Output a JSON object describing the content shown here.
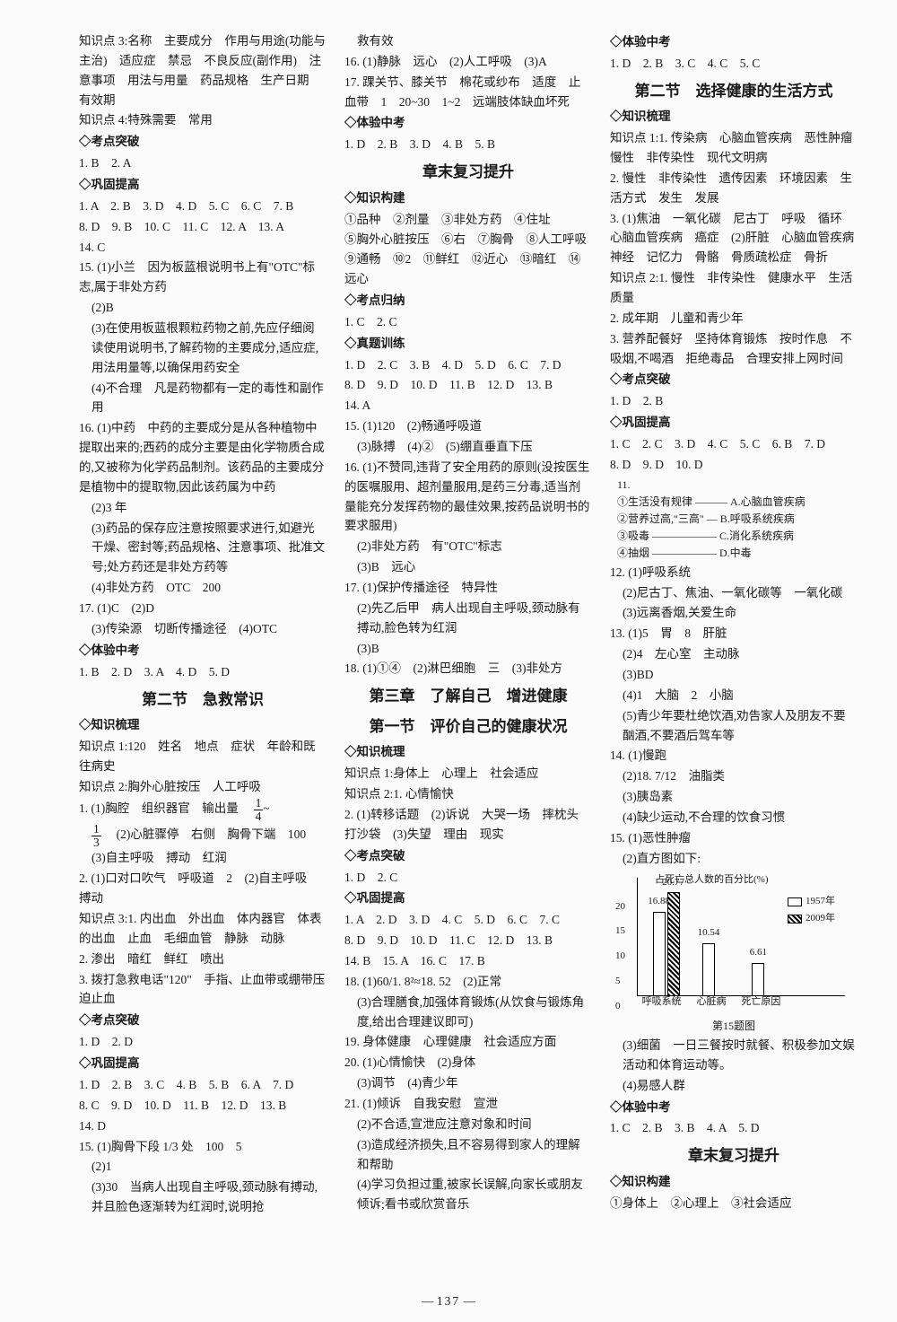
{
  "page_number": "137",
  "col1": {
    "zsd3": "知识点 3:名称　主要成分　作用与用途(功能与主治)　适应症　禁忌　不良反应(副作用)　注意事项　用法与用量　药品规格　生产日期　有效期",
    "zsd4": "知识点 4:特殊需要　常用",
    "kdtp_hd": "◇考点突破",
    "kdtp": "1. B　2. A",
    "gg_hd": "◇巩固提高",
    "gg1": "1. A　2. B　3. D　4. D　5. C　6. C　7. B",
    "gg2": "8. D　9. B　10. C　11. C　12. A　13. A",
    "gg3": "14. C",
    "a15_1": "15. (1)小兰　因为板蓝根说明书上有\"OTC\"标志,属于非处方药",
    "a15_2": "(2)B",
    "a15_3": "(3)在使用板蓝根颗粒药物之前,先应仔细阅读使用说明书,了解药物的主要成分,适应症,用法用量等,以确保用药安全",
    "a15_4": "(4)不合理　凡是药物都有一定的毒性和副作用",
    "a16_1": "16. (1)中药　中药的主要成分是从各种植物中提取出来的;西药的成分主要是由化学物质合成的,又被称为化学药品制剂。该药品的主要成分是植物中的提取物,因此该药属为中药",
    "a16_2": "(2)3 年",
    "a16_3": "(3)药品的保存应注意按照要求进行,如避光干燥、密封等;药品规格、注意事项、批准文号;处方药还是非处方药等",
    "a16_4": "(4)非处方药　OTC　200",
    "a17_1": "17. (1)C　(2)D",
    "a17_2": "(3)传染源　切断传播途径　(4)OTC",
    "tyzk_hd": "◇体验中考",
    "tyzk": "1. B　2. D　3. A　4. D　5. D",
    "sec2_title": "第二节　急救常识",
    "zssl_hd": "◇知识梳理",
    "zsd_a1": "知识点 1:120　姓名　地点　症状　年龄和既往病史",
    "zsd_a2": "知识点 2:胸外心脏按压　人工呼吸",
    "a_line1a": "1. (1)胸腔　组织器官　输出量　",
    "a_line1b": "　(2)心脏骤停　右侧　胸骨下端　100　(3)自主呼吸　搏动　红润",
    "a_line2": "2. (1)口对口吹气　呼吸道　2　(2)自主呼吸　搏动",
    "zsd_a3": "知识点 3:1. 内出血　外出血　体内器官　体表的出血　止血　毛细血管　静脉　动脉",
    "a_line3": "2. 渗出　暗红　鲜红　喷出",
    "a_line4": "3. 拨打急救电话\"120\"　手指、止血带或绷带压迫止血",
    "kd2_hd": "◇考点突破",
    "kd2": "1. D　2. D",
    "gg2_hd": "◇巩固提高",
    "gg2_l1": "1. D　2. B　3. C　4. B　5. B　6. A　7. D",
    "gg2_l2": "8. C　9. D　10. D　11. B　12. D　13. B",
    "gg2_l3": "14. D",
    "a15b_1": "15. (1)胸骨下段 1/3 处　100　5",
    "a15b_2": "(2)1",
    "a15b_3": "(3)30　当病人出现自主呼吸,颈动脉有搏动,并且脸色逐渐转为红润时,说明抢"
  },
  "col2": {
    "topline": "救有效",
    "a16": "16. (1)静脉　远心　(2)人工呼吸　(3)A",
    "a17": "17. 踝关节、膝关节　棉花或纱布　适度　止血带　1　20~30　1~2　远端肢体缺血坏死",
    "tyzk_hd": "◇体验中考",
    "tyzk": "1. D　2. B　3. D　4. B　5. B",
    "zmfx_title": "章末复习提升",
    "zsgj_hd": "◇知识构建",
    "zsgj_1": "①品种　②剂量　③非处方药　④住址",
    "zsgj_2": "⑤胸外心脏按压　⑥右　⑦胸骨　⑧人工呼吸　⑨通畅　⑩2　⑪鲜红　⑫近心　⑬暗红　⑭远心",
    "kdgn_hd": "◇考点归纳",
    "kdgn": "1. C　2. C",
    "ztxl_hd": "◇真题训练",
    "zt_l1": "1. D　2. C　3. B　4. D　5. D　6. C　7. D",
    "zt_l2": "8. D　9. D　10. D　11. B　12. D　13. B",
    "zt_l3": "14. A",
    "a15_1": "15. (1)120　(2)畅通呼吸道",
    "a15_2": "(3)脉搏　(4)②　(5)绷直垂直下压",
    "a16_1": "16. (1)不赞同,违背了安全用药的原则(没按医生的医嘱服用、超剂量服用,是药三分毒,适当剂量能充分发挥药物的最佳效果,按药品说明书的要求服用)",
    "a16_2": "(2)非处方药　有\"OTC\"标志",
    "a16_3": "(3)B　远心",
    "a17_1": "17. (1)保护传播途径　特异性",
    "a17_2": "(2)先乙后甲　病人出现自主呼吸,颈动脉有搏动,脸色转为红润",
    "a17_3": "(3)B",
    "a18": "18. (1)①④　(2)淋巴细胞　三　(3)非处方",
    "ch3_title": "第三章　了解自己　增进健康",
    "ch3_sec1": "第一节　评价自己的健康状况",
    "c3_zssl_hd": "◇知识梳理",
    "c3_zsd1": "知识点 1:身体上　心理上　社会适应",
    "c3_zsd2": "知识点 2:1. 心情愉快",
    "c3_line2": "2. (1)转移话题　(2)诉说　大哭一场　摔枕头　打沙袋　(3)失望　理由　现实",
    "c3_kd_hd": "◇考点突破",
    "c3_kd": "1. D　2. C",
    "c3_gg_hd": "◇巩固提高",
    "c3_gg1": "1. A　2. D　3. D　4. C　5. D　6. C　7. C",
    "c3_gg2": "8. D　9. D　10. D　11. C　12. D　13. B",
    "c3_gg3": "14. B　15. A　16. C　17. B",
    "c3_a18": "18. (1)60/1. 8²≈18. 52　(2)正常",
    "c3_a18b": "(3)合理膳食,加强体育锻炼(从饮食与锻炼角度,给出合理建议即可)",
    "c3_a19": "19. 身体健康　心理健康　社会适应方面",
    "c3_a20_1": "20. (1)心情愉快　(2)身体",
    "c3_a20_2": "(3)调节　(4)青少年",
    "c3_a21_1": "21. (1)倾诉　自我安慰　宣泄",
    "c3_a21_2": "(2)不合适,宣泄应注意对象和时间",
    "c3_a21_3": "(3)造成经济损失,且不容易得到家人的理解和帮助",
    "c3_a21_4": "(4)学习负担过重,被家长误解,向家长或朋友倾诉;看书或欣赏音乐"
  },
  "col3": {
    "tyzk_hd": "◇体验中考",
    "tyzk": "1. D　2. B　3. C　4. C　5. C",
    "sec2_title": "第二节　选择健康的生活方式",
    "zssl_hd": "◇知识梳理",
    "zsd1": "知识点 1:1. 传染病　心脑血管疾病　恶性肿瘤　慢性　非传染性　现代文明病",
    "line2": "2. 慢性　非传染性　遗传因素　环境因素　生活方式　发生　发展",
    "line3_1": "3. (1)焦油　一氧化碳　尼古丁　呼吸　循环　心脑血管疾病　癌症　(2)肝脏　心脑血管疾病　神经　记忆力　骨骼　骨质疏松症　骨折",
    "zsd2": "知识点 2:1. 慢性　非传染性　健康水平　生活质量",
    "line2b": "2. 成年期　儿童和青少年",
    "line3b": "3. 营养配餐好　坚持体育锻炼　按时作息　不吸烟,不喝酒　拒绝毒品　合理安排上网时间",
    "kd_hd": "◇考点突破",
    "kd": "1. D　2. B",
    "gg_hd": "◇巩固提高",
    "gg1": "1. C　2. C　3. D　4. C　5. C　6. B　7. D",
    "gg2": "8. D　9. D　10. D",
    "a11_lead": "11.",
    "a11_1": "①生活没有规律 ——— A.心脑血管疾病",
    "a11_2": "②营养过高,\"三高\" — B.呼吸系统疾病",
    "a11_3": "③吸毒 —————— C.消化系统疾病",
    "a11_4": "④抽烟 —————— D.中毒",
    "a12_1": "12. (1)呼吸系统",
    "a12_2": "(2)尼古丁、焦油、一氧化碳等　一氧化碳",
    "a12_3": "(3)远离香烟,关爱生命",
    "a13_1": "13. (1)5　胃　8　肝脏",
    "a13_2": "(2)4　左心室　主动脉",
    "a13_3": "(3)BD",
    "a13_4": "(4)1　大脑　2　小脑",
    "a13_5": "(5)青少年要杜绝饮酒,劝告家人及朋友不要酗酒,不要酒后驾车等",
    "a14_1": "14. (1)慢跑",
    "a14_2": "(2)18. 7/12　油脂类",
    "a14_3": "(3)胰岛素",
    "a14_4": "(4)缺少运动,不合理的饮食习惯",
    "a15_1": "15. (1)恶性肿瘤",
    "a15_2": "(2)直方图如下:",
    "chart": {
      "title": "占死亡总人数的百分比(%)",
      "categories": [
        "呼吸系统",
        "心脏病",
        "死亡原因"
      ],
      "caption": "第15题图",
      "ylim": 22,
      "yticks": [
        0,
        5,
        10,
        15,
        20
      ],
      "series": [
        {
          "name": "1957年",
          "fill": "#ffffff",
          "values": [
            16.88,
            10.54,
            6.61
          ]
        },
        {
          "name": "2009年",
          "fill": "repeating-linear-gradient(45deg,#000 0 2px,#fff 2px 4px)",
          "values": [
            20.77,
            null,
            null
          ]
        }
      ],
      "labels_above": [
        "16.88",
        "20.77",
        "10.54",
        "6.61"
      ]
    },
    "a15_3": "(3)细菌　一日三餐按时就餐、积极参加文娱活动和体育运动等。",
    "a15_4": "(4)易感人群",
    "tyzk2_hd": "◇体验中考",
    "tyzk2": "1. C　2. B　3. B　4. A　5. D",
    "zmfx_title": "章末复习提升",
    "zsgj_hd": "◇知识构建",
    "zsgj": "①身体上　②心理上　③社会适应"
  }
}
